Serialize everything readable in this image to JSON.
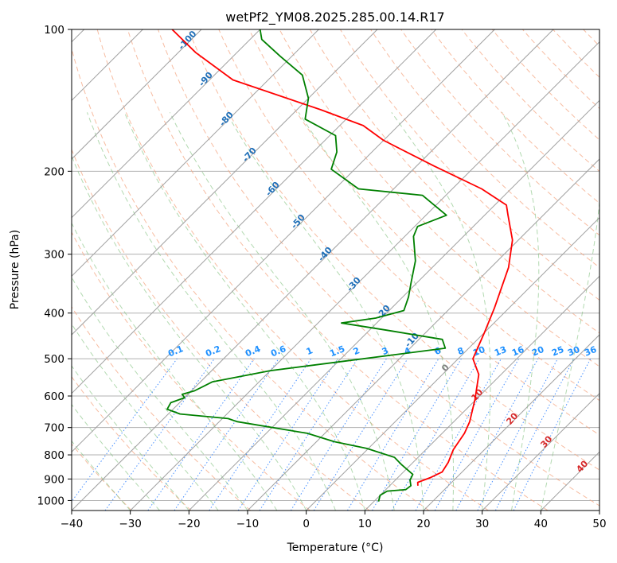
{
  "chart_data": {
    "type": "line",
    "title": "wetPf2_YM08.2025.285.00.14.R17",
    "xlabel": "Temperature (°C)",
    "ylabel": "Pressure (hPa)",
    "xlim": [
      -40,
      50
    ],
    "ylim": [
      1050,
      100
    ],
    "yscale": "log",
    "x_ticks": [
      -40,
      -30,
      -20,
      -10,
      0,
      10,
      20,
      30,
      40,
      50
    ],
    "y_ticks": [
      1000,
      900,
      800,
      700,
      600,
      500,
      400,
      300,
      200,
      100
    ],
    "series": [
      {
        "color": "#ff0000",
        "points": [
          [
            14.8,
            930
          ],
          [
            14.2,
            915
          ],
          [
            15.5,
            895
          ],
          [
            16.6,
            870
          ],
          [
            16.0,
            830
          ],
          [
            14.7,
            780
          ],
          [
            13.8,
            720
          ],
          [
            12.7,
            680
          ],
          [
            9.8,
            610
          ],
          [
            6.2,
            540
          ],
          [
            2.5,
            500
          ],
          [
            0.0,
            440
          ],
          [
            -2.5,
            390
          ],
          [
            -7.0,
            320
          ],
          [
            -11.0,
            280
          ],
          [
            -16.0,
            248
          ],
          [
            -18.0,
            236
          ],
          [
            -25.0,
            218
          ],
          [
            -37.0,
            195
          ],
          [
            -50.0,
            172
          ],
          [
            -56.0,
            160
          ],
          [
            -66.0,
            148
          ],
          [
            -86.0,
            128
          ],
          [
            -97.0,
            112
          ],
          [
            -105.0,
            100
          ]
        ]
      },
      {
        "color": "#008000",
        "points": [
          [
            10.8,
            1005
          ],
          [
            10.0,
            975
          ],
          [
            10.5,
            955
          ],
          [
            13.4,
            948
          ],
          [
            13.6,
            930
          ],
          [
            12.5,
            905
          ],
          [
            12.0,
            880
          ],
          [
            8.5,
            840
          ],
          [
            6.0,
            810
          ],
          [
            -0.3,
            775
          ],
          [
            -7.0,
            750
          ],
          [
            -13.0,
            720
          ],
          [
            -27.0,
            680
          ],
          [
            -29.0,
            670
          ],
          [
            -38.0,
            655
          ],
          [
            -41.0,
            640
          ],
          [
            -41.5,
            620
          ],
          [
            -40.0,
            605
          ],
          [
            -41.0,
            595
          ],
          [
            -39.5,
            585
          ],
          [
            -38.0,
            560
          ],
          [
            -30.0,
            530
          ],
          [
            -19.0,
            506
          ],
          [
            -4.0,
            475
          ],
          [
            -6.0,
            455
          ],
          [
            -17.0,
            435
          ],
          [
            -26.0,
            420
          ],
          [
            -21.0,
            410
          ],
          [
            -17.5,
            395
          ],
          [
            -19.0,
            370
          ],
          [
            -21.0,
            345
          ],
          [
            -24.0,
            310
          ],
          [
            -28.5,
            275
          ],
          [
            -29.5,
            262
          ],
          [
            -26.5,
            248
          ],
          [
            -34.0,
            225
          ],
          [
            -46.0,
            218
          ],
          [
            -54.0,
            198
          ],
          [
            -56.0,
            182
          ],
          [
            -59.0,
            168
          ],
          [
            -67.0,
            155
          ],
          [
            -70.0,
            140
          ],
          [
            -75.0,
            125
          ],
          [
            -82.0,
            114
          ],
          [
            -88.0,
            105
          ],
          [
            -90.0,
            100
          ]
        ]
      }
    ],
    "dry_adiabat_labels": [
      "-100",
      "-90",
      "-80",
      "-70",
      "-60",
      "-50",
      "-40",
      "-30",
      "-20",
      "-10"
    ],
    "moist_adiabat_labels": [
      "0",
      "10",
      "20",
      "30",
      "40"
    ],
    "mixing_ratio_labels": [
      "0.1",
      "0.2",
      "0.4",
      "0.6",
      "1",
      "1.5",
      "2",
      "3",
      "4",
      "6",
      "8",
      "10",
      "13",
      "16",
      "20",
      "25",
      "30",
      "36"
    ],
    "mixing_ratio_values": [
      0.1,
      0.2,
      0.4,
      0.6,
      1,
      1.5,
      2,
      3,
      4,
      6,
      8,
      10,
      13,
      16,
      20,
      25,
      30,
      36
    ],
    "grid": true
  }
}
